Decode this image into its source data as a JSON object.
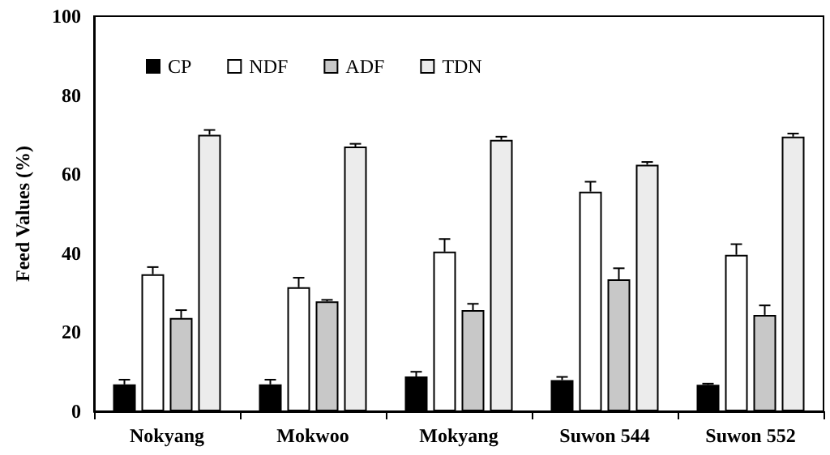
{
  "chart_data": {
    "type": "bar",
    "ylabel": "Feed Values (%)",
    "categories": [
      "Nokyang",
      "Mokwoo",
      "Mokyang",
      "Suwon 544",
      "Suwon 552"
    ],
    "series": [
      {
        "name": "CP",
        "color": "#000000",
        "values": [
          6.8,
          6.8,
          8.8,
          7.9,
          6.7
        ],
        "errors": [
          1.2,
          1.2,
          1.2,
          0.8,
          0.3
        ]
      },
      {
        "name": "NDF",
        "color": "#ffffff",
        "values": [
          34.7,
          31.4,
          40.4,
          55.6,
          39.6
        ],
        "errors": [
          1.8,
          2.4,
          3.2,
          2.5,
          2.7
        ]
      },
      {
        "name": "ADF",
        "color": "#c8c8c8",
        "values": [
          23.6,
          27.8,
          25.6,
          33.4,
          24.4
        ],
        "errors": [
          2.0,
          0.4,
          1.6,
          2.8,
          2.4
        ]
      },
      {
        "name": "TDN",
        "color": "#ececec",
        "values": [
          70,
          67,
          68.7,
          62.4,
          69.5
        ],
        "errors": [
          1.2,
          0.7,
          0.8,
          0.7,
          0.8
        ]
      }
    ],
    "ylim": [
      0,
      100
    ],
    "yticks": [
      0,
      20,
      40,
      60,
      80,
      100
    ],
    "grid": false,
    "legend": "top left"
  }
}
